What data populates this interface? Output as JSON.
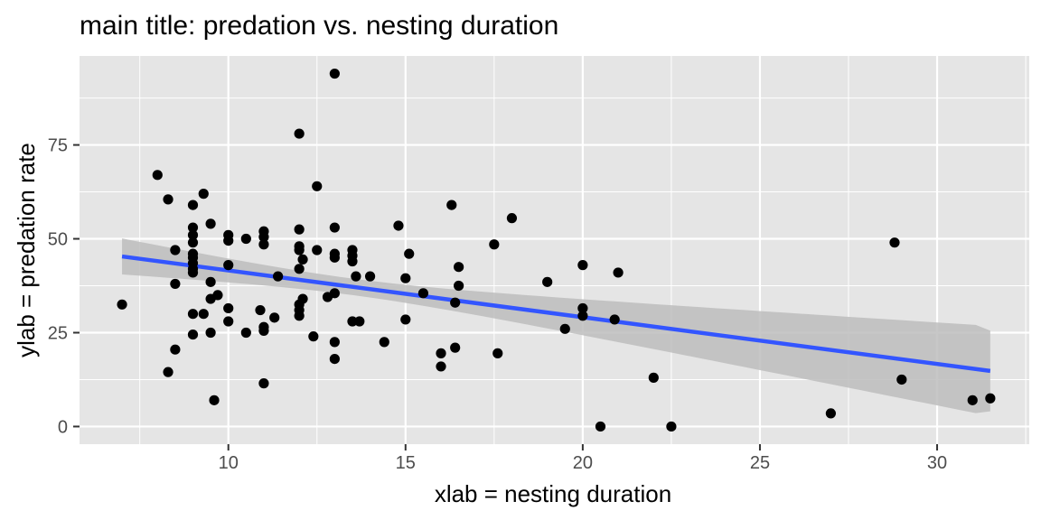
{
  "chart_data": {
    "type": "scatter",
    "title": "main title: predation vs. nesting duration",
    "xlabel": "xlab = nesting duration",
    "ylabel": "ylab = predation rate",
    "xlim": [
      5.8,
      32.6
    ],
    "ylim": [
      -4.7,
      98.7
    ],
    "xticks": [
      10,
      15,
      20,
      25,
      30
    ],
    "yticks": [
      0,
      25,
      50,
      75
    ],
    "grid": true,
    "legend": "none",
    "colors": {
      "panel": "#e5e5e5",
      "grid": "#ffffff",
      "points": "#000000",
      "fit_line": "#3355ff",
      "ribbon": "#bdbdbd"
    },
    "fit": {
      "method": "linear",
      "x": [
        7,
        31.5
      ],
      "y": [
        45.3,
        14.8
      ],
      "ci_lower": [
        40.4,
        4.0
      ],
      "ci_upper": [
        50.0,
        25.5
      ]
    },
    "points": [
      [
        7.0,
        32.5
      ],
      [
        8.0,
        67.0
      ],
      [
        8.3,
        60.5
      ],
      [
        8.3,
        14.5
      ],
      [
        8.5,
        47.0
      ],
      [
        8.5,
        38.0
      ],
      [
        8.5,
        20.5
      ],
      [
        9.0,
        59.0
      ],
      [
        9.0,
        53.0
      ],
      [
        9.0,
        51.0
      ],
      [
        9.0,
        49.0
      ],
      [
        9.0,
        46.0
      ],
      [
        9.0,
        45.0
      ],
      [
        9.0,
        43.5
      ],
      [
        9.0,
        42.0
      ],
      [
        9.0,
        41.0
      ],
      [
        9.0,
        30.0
      ],
      [
        9.0,
        24.5
      ],
      [
        9.3,
        62.0
      ],
      [
        9.3,
        30.0
      ],
      [
        9.5,
        54.0
      ],
      [
        9.5,
        38.5
      ],
      [
        9.5,
        34.0
      ],
      [
        9.5,
        25.0
      ],
      [
        9.6,
        7.0
      ],
      [
        9.7,
        35.0
      ],
      [
        10.0,
        51.0
      ],
      [
        10.0,
        49.5
      ],
      [
        10.0,
        43.0
      ],
      [
        10.0,
        31.5
      ],
      [
        10.0,
        28.0
      ],
      [
        10.5,
        50.0
      ],
      [
        10.5,
        25.0
      ],
      [
        10.9,
        31.0
      ],
      [
        11.0,
        52.0
      ],
      [
        11.0,
        50.5
      ],
      [
        11.0,
        48.5
      ],
      [
        11.0,
        26.5
      ],
      [
        11.0,
        25.5
      ],
      [
        11.0,
        11.5
      ],
      [
        11.3,
        29.0
      ],
      [
        11.4,
        40.0
      ],
      [
        12.0,
        78.0
      ],
      [
        12.0,
        52.5
      ],
      [
        12.0,
        48.0
      ],
      [
        12.0,
        47.0
      ],
      [
        12.0,
        42.0
      ],
      [
        12.0,
        32.5
      ],
      [
        12.0,
        31.0
      ],
      [
        12.0,
        29.5
      ],
      [
        12.1,
        44.5
      ],
      [
        12.1,
        34.0
      ],
      [
        12.4,
        24.0
      ],
      [
        12.5,
        64.0
      ],
      [
        12.5,
        47.0
      ],
      [
        12.8,
        34.5
      ],
      [
        13.0,
        94.0
      ],
      [
        13.0,
        53.0
      ],
      [
        13.0,
        46.0
      ],
      [
        13.0,
        45.0
      ],
      [
        13.0,
        35.5
      ],
      [
        13.0,
        22.5
      ],
      [
        13.0,
        18.0
      ],
      [
        13.5,
        47.0
      ],
      [
        13.5,
        45.5
      ],
      [
        13.5,
        44.0
      ],
      [
        13.5,
        28.0
      ],
      [
        13.6,
        40.0
      ],
      [
        13.7,
        28.0
      ],
      [
        14.0,
        40.0
      ],
      [
        14.4,
        22.5
      ],
      [
        14.8,
        53.5
      ],
      [
        15.0,
        39.5
      ],
      [
        15.0,
        28.5
      ],
      [
        15.1,
        46.0
      ],
      [
        15.5,
        35.5
      ],
      [
        16.0,
        19.5
      ],
      [
        16.0,
        16.0
      ],
      [
        16.3,
        59.0
      ],
      [
        16.4,
        33.0
      ],
      [
        16.4,
        21.0
      ],
      [
        16.5,
        42.5
      ],
      [
        16.5,
        37.5
      ],
      [
        17.5,
        48.5
      ],
      [
        17.6,
        19.5
      ],
      [
        18.0,
        55.5
      ],
      [
        19.0,
        38.5
      ],
      [
        19.5,
        26.0
      ],
      [
        20.0,
        43.0
      ],
      [
        20.0,
        31.5
      ],
      [
        20.0,
        29.5
      ],
      [
        20.5,
        0.0
      ],
      [
        20.9,
        28.5
      ],
      [
        21.0,
        41.0
      ],
      [
        22.0,
        13.0
      ],
      [
        22.5,
        0.0
      ],
      [
        27.0,
        3.5
      ],
      [
        28.8,
        49.0
      ],
      [
        29.0,
        12.5
      ],
      [
        31.0,
        7.0
      ],
      [
        31.5,
        7.5
      ]
    ]
  }
}
